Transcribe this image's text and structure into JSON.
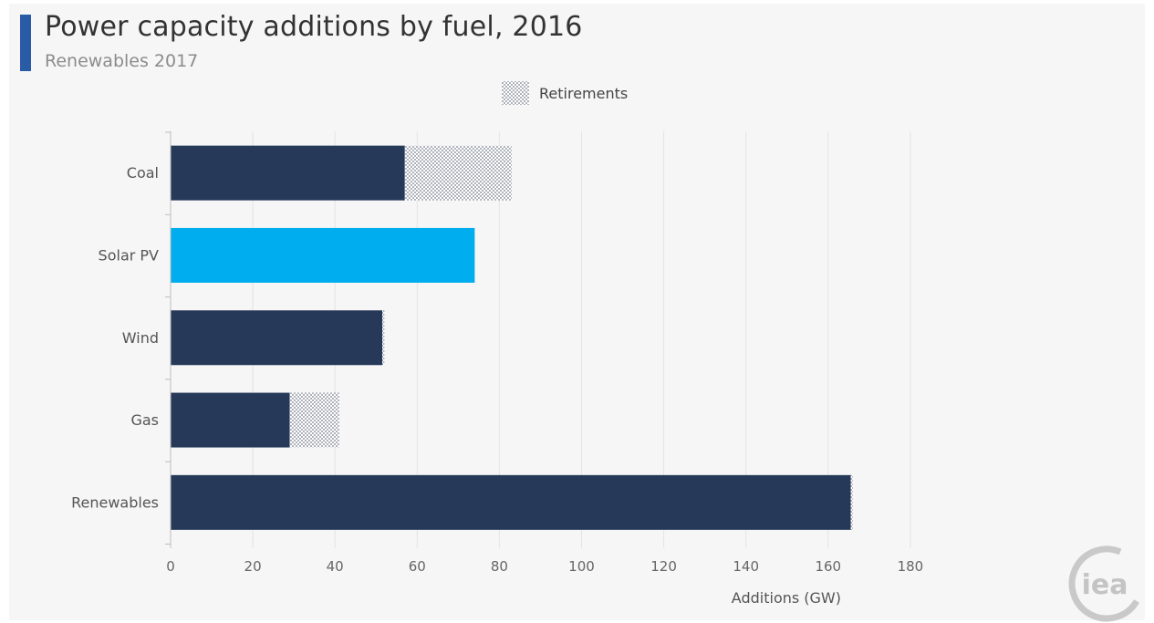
{
  "title": "Power capacity additions by fuel, 2016",
  "subtitle": "Renewables 2017",
  "logo_text": "iea",
  "colors": {
    "accent": "#2a5ba6",
    "navy": "#263959",
    "solar": "#00aeef",
    "dots": "#6b7384"
  },
  "chart_data": {
    "type": "bar",
    "orientation": "horizontal",
    "stacked": true,
    "categories": [
      "Coal",
      "Solar PV",
      "Wind",
      "Gas",
      "Renewables"
    ],
    "series": [
      {
        "values": [
          57,
          74,
          51.5,
          29,
          165.5
        ]
      },
      {
        "name": "Retirements",
        "values": [
          26,
          0,
          0.5,
          12,
          0.5
        ]
      }
    ],
    "xlabel": "Additions (GW)",
    "ylabel": "",
    "xlim": [
      0,
      180
    ],
    "xticks": [
      0,
      20,
      40,
      60,
      80,
      100,
      120,
      140,
      160,
      180
    ],
    "grid": true,
    "legend": "top-center",
    "highlight_category": "Solar PV"
  }
}
